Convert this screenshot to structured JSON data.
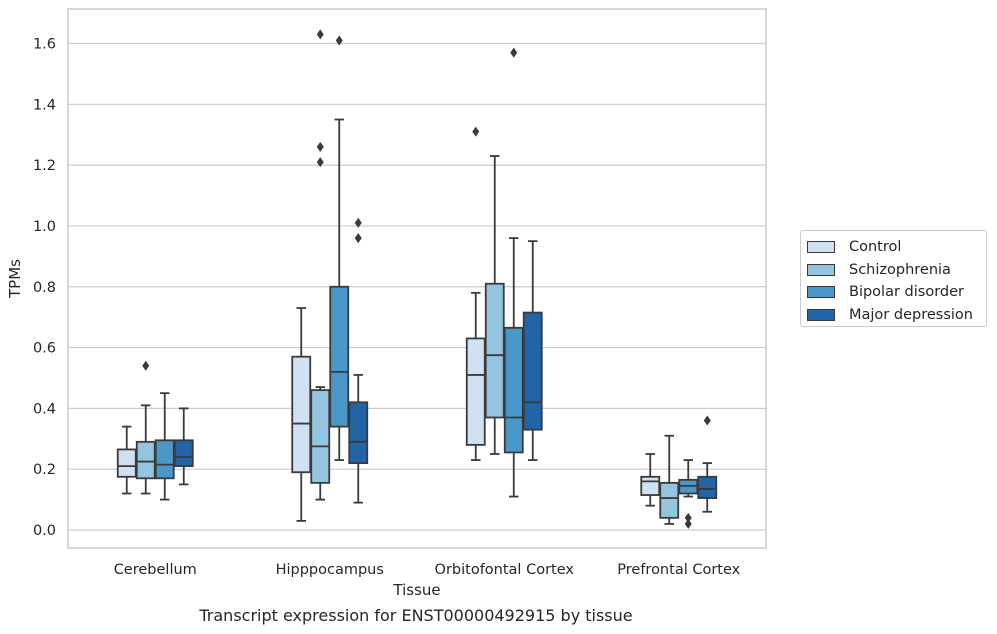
{
  "caption": "Transcript expression for ENST00000492915 by tissue",
  "chart_data": {
    "type": "boxplot",
    "xlabel": "Tissue",
    "ylabel": "TPMs",
    "ylim": [
      -0.05,
      1.71
    ],
    "yticks": [
      "0.0",
      "0.2",
      "0.4",
      "0.6",
      "0.8",
      "1.0",
      "1.2",
      "1.4",
      "1.6"
    ],
    "grid": "horizontal",
    "legend_position": "right",
    "categories": [
      "Cerebellum",
      "Hipppocampus",
      "Orbitofontal Cortex",
      "Prefrontal Cortex"
    ],
    "series": [
      {
        "name": "Control",
        "color": "#d0e1f2",
        "boxes": [
          {
            "whisker_low": 0.12,
            "q1": 0.175,
            "median": 0.21,
            "q3": 0.265,
            "whisker_high": 0.34,
            "outliers": []
          },
          {
            "whisker_low": 0.03,
            "q1": 0.19,
            "median": 0.35,
            "q3": 0.57,
            "whisker_high": 0.73,
            "outliers": []
          },
          {
            "whisker_low": 0.23,
            "q1": 0.28,
            "median": 0.51,
            "q3": 0.63,
            "whisker_high": 0.78,
            "outliers": [
              1.31
            ]
          },
          {
            "whisker_low": 0.08,
            "q1": 0.115,
            "median": 0.16,
            "q3": 0.175,
            "whisker_high": 0.25,
            "outliers": []
          }
        ]
      },
      {
        "name": "Schizophrenia",
        "color": "#94c4df",
        "boxes": [
          {
            "whisker_low": 0.12,
            "q1": 0.17,
            "median": 0.225,
            "q3": 0.29,
            "whisker_high": 0.41,
            "outliers": [
              0.54
            ]
          },
          {
            "whisker_low": 0.1,
            "q1": 0.155,
            "median": 0.275,
            "q3": 0.46,
            "whisker_high": 0.47,
            "outliers": [
              1.21,
              1.26,
              1.63
            ]
          },
          {
            "whisker_low": 0.25,
            "q1": 0.37,
            "median": 0.575,
            "q3": 0.81,
            "whisker_high": 1.23,
            "outliers": []
          },
          {
            "whisker_low": 0.02,
            "q1": 0.04,
            "median": 0.105,
            "q3": 0.155,
            "whisker_high": 0.31,
            "outliers": []
          }
        ]
      },
      {
        "name": "Bipolar disorder",
        "color": "#4a98c9",
        "boxes": [
          {
            "whisker_low": 0.1,
            "q1": 0.17,
            "median": 0.215,
            "q3": 0.295,
            "whisker_high": 0.45,
            "outliers": []
          },
          {
            "whisker_low": 0.23,
            "q1": 0.34,
            "median": 0.52,
            "q3": 0.8,
            "whisker_high": 1.35,
            "outliers": [
              1.61
            ]
          },
          {
            "whisker_low": 0.11,
            "q1": 0.255,
            "median": 0.37,
            "q3": 0.665,
            "whisker_high": 0.96,
            "outliers": [
              1.57
            ]
          },
          {
            "whisker_low": 0.11,
            "q1": 0.12,
            "median": 0.145,
            "q3": 0.165,
            "whisker_high": 0.23,
            "outliers": [
              0.02,
              0.04
            ]
          }
        ]
      },
      {
        "name": "Major depression",
        "color": "#2164a8",
        "boxes": [
          {
            "whisker_low": 0.15,
            "q1": 0.21,
            "median": 0.24,
            "q3": 0.295,
            "whisker_high": 0.4,
            "outliers": []
          },
          {
            "whisker_low": 0.09,
            "q1": 0.22,
            "median": 0.29,
            "q3": 0.42,
            "whisker_high": 0.51,
            "outliers": [
              0.96,
              1.01
            ]
          },
          {
            "whisker_low": 0.23,
            "q1": 0.33,
            "median": 0.42,
            "q3": 0.715,
            "whisker_high": 0.95,
            "outliers": []
          },
          {
            "whisker_low": 0.06,
            "q1": 0.105,
            "median": 0.135,
            "q3": 0.175,
            "whisker_high": 0.22,
            "outliers": [
              0.36
            ]
          }
        ]
      }
    ]
  }
}
